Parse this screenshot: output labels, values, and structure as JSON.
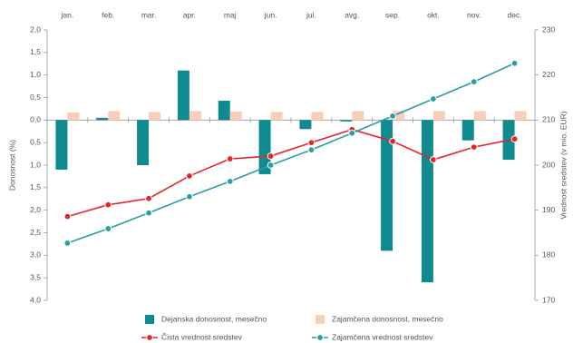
{
  "chart_data": {
    "type": "combo",
    "categories": [
      "jan.",
      "feb.",
      "mar.",
      "apr.",
      "maj",
      "jun.",
      "jul.",
      "avg.",
      "sep.",
      "okt.",
      "nov.",
      "dec."
    ],
    "ylabel": "Donosnost (%)",
    "y2label": "Vrednost sredstev (v mio. EUR)",
    "ylim": [
      -4,
      2
    ],
    "yticks": [
      {
        "value": 2,
        "label": "2,0"
      },
      {
        "value": 1.5,
        "label": "1,5"
      },
      {
        "value": 1,
        "label": "1,0"
      },
      {
        "value": 0.5,
        "label": "0,5"
      },
      {
        "value": 0,
        "label": "0,0"
      },
      {
        "value": -0.5,
        "label": "0,5"
      },
      {
        "value": -1,
        "label": "1,0"
      },
      {
        "value": -1.5,
        "label": "1,5"
      },
      {
        "value": -2,
        "label": "2,0"
      },
      {
        "value": -2.5,
        "label": "2,5"
      },
      {
        "value": -3,
        "label": "3,0"
      },
      {
        "value": -3.5,
        "label": "3,5"
      },
      {
        "value": -4,
        "label": "4,0"
      }
    ],
    "y2lim": [
      170,
      230
    ],
    "y2ticks": [
      230,
      220,
      210,
      200,
      190,
      180,
      170
    ],
    "series": [
      {
        "name": "Dejanska donosnost, mesečno",
        "type": "bar",
        "axis": "y",
        "color": "#0f8a8f",
        "values": [
          -1.1,
          0.05,
          -1.0,
          1.1,
          0.43,
          -1.2,
          -0.2,
          -0.03,
          -2.9,
          -3.6,
          -0.45,
          -0.88
        ]
      },
      {
        "name": "Zajamčena donosnost, mesečno",
        "type": "bar",
        "axis": "y",
        "color": "#f9cdb8",
        "values": [
          0.17,
          0.2,
          0.18,
          0.2,
          0.19,
          0.18,
          0.18,
          0.2,
          0.2,
          0.2,
          0.2,
          0.2
        ]
      },
      {
        "name": "Čista vrednost sredstev",
        "type": "line",
        "axis": "y2",
        "color": "#e3262b",
        "values": [
          188.6,
          191.2,
          192.6,
          197.6,
          201.4,
          202.0,
          205.0,
          207.9,
          205.3,
          201.2,
          204.0,
          205.8
        ]
      },
      {
        "name": "Zajamčena vrednost sredstev",
        "type": "line",
        "axis": "y2",
        "color": "#2a9da5",
        "values": [
          182.7,
          185.9,
          189.4,
          193.0,
          196.4,
          200.0,
          203.4,
          207.1,
          210.9,
          214.7,
          218.5,
          222.6
        ]
      }
    ]
  }
}
